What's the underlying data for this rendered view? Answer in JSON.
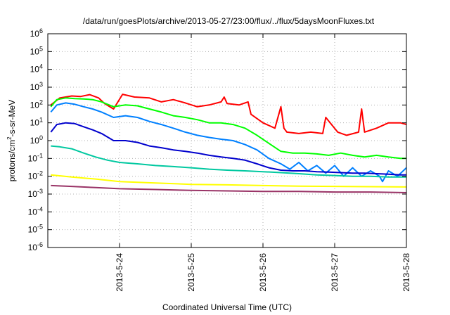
{
  "chart_data": {
    "type": "line",
    "title": "/data/run/goesPlots/archive/2013-05-27/23:00/flux/../flux/5daysMoonFluxes.txt",
    "xlabel": "Coordinated Universal Time (UTC)",
    "ylabel": {
      "prefix": "protons/cm",
      "sup": "2",
      "suffix": "-s-sr-MeV"
    },
    "y_scale": "log",
    "ylim": [
      1e-06,
      1000000.0
    ],
    "x_range": [
      "2013-05-23T00:00",
      "2013-05-28T00:00"
    ],
    "grid": true,
    "legend": "none",
    "x_ticks": [
      "2013-5-24",
      "2013-5-25",
      "2013-5-26",
      "2013-5-27",
      "2013-5-28"
    ],
    "y_ticks": [
      {
        "base": "10",
        "exp": "-6"
      },
      {
        "base": "10",
        "exp": "-5"
      },
      {
        "base": "10",
        "exp": "-4"
      },
      {
        "base": "10",
        "exp": "-3"
      },
      {
        "base": "10",
        "exp": "-2"
      },
      {
        "base": "10",
        "exp": "-1"
      },
      {
        "base": "10",
        "exp": "0"
      },
      {
        "base": "10",
        "exp": "1"
      },
      {
        "base": "10",
        "exp": "2"
      },
      {
        "base": "10",
        "exp": "3"
      },
      {
        "base": "10",
        "exp": "4"
      },
      {
        "base": "10",
        "exp": "5"
      },
      {
        "base": "10",
        "exp": "6"
      }
    ],
    "series": [
      {
        "color": "#ff0000",
        "x": [
          "2013-05-23T01:00",
          "2013-05-23T04:00",
          "2013-05-23T08:00",
          "2013-05-23T11:00",
          "2013-05-23T14:00",
          "2013-05-23T17:00",
          "2013-05-23T19:00",
          "2013-05-23T22:00",
          "2013-05-24T01:00",
          "2013-05-24T05:00",
          "2013-05-24T10:00",
          "2013-05-24T14:00",
          "2013-05-24T18:00",
          "2013-05-24T22:00",
          "2013-05-25T02:00",
          "2013-05-25T06:00",
          "2013-05-25T10:00",
          "2013-05-25T11:00",
          "2013-05-25T12:00",
          "2013-05-25T16:00",
          "2013-05-25T19:00",
          "2013-05-25T20:00",
          "2013-05-26T00:00",
          "2013-05-26T04:00",
          "2013-05-26T06:00",
          "2013-05-26T07:00",
          "2013-05-26T08:00",
          "2013-05-26T12:00",
          "2013-05-26T16:00",
          "2013-05-26T20:00",
          "2013-05-26T21:00",
          "2013-05-27T01:00",
          "2013-05-27T04:00",
          "2013-05-27T08:00",
          "2013-05-27T09:00",
          "2013-05-27T10:00",
          "2013-05-27T14:00",
          "2013-05-27T18:00",
          "2013-05-27T22:00",
          "2013-05-28T00:00"
        ],
        "y": [
          100,
          250,
          320,
          300,
          380,
          250,
          120,
          60,
          400,
          280,
          250,
          150,
          200,
          130,
          80,
          100,
          150,
          280,
          120,
          100,
          150,
          30,
          10,
          5,
          80,
          5,
          3,
          2.5,
          3,
          2.5,
          20,
          3,
          2,
          3,
          60,
          3,
          5,
          10,
          10,
          8
        ]
      },
      {
        "color": "#00ff00",
        "x": [
          "2013-05-23T01:00",
          "2013-05-23T03:00",
          "2013-05-23T06:00",
          "2013-05-23T09:00",
          "2013-05-23T12:00",
          "2013-05-23T15:00",
          "2013-05-23T18:00",
          "2013-05-23T22:00",
          "2013-05-24T02:00",
          "2013-05-24T06:00",
          "2013-05-24T10:00",
          "2013-05-24T14:00",
          "2013-05-24T18:00",
          "2013-05-24T22:00",
          "2013-05-25T02:00",
          "2013-05-25T06:00",
          "2013-05-25T10:00",
          "2013-05-25T14:00",
          "2013-05-25T18:00",
          "2013-05-25T22:00",
          "2013-05-26T02:00",
          "2013-05-26T06:00",
          "2013-05-26T10:00",
          "2013-05-26T14:00",
          "2013-05-26T18:00",
          "2013-05-26T22:00",
          "2013-05-27T02:00",
          "2013-05-27T06:00",
          "2013-05-27T10:00",
          "2013-05-27T14:00",
          "2013-05-27T18:00",
          "2013-05-27T22:00",
          "2013-05-28T00:00"
        ],
        "y": [
          80,
          200,
          250,
          230,
          220,
          200,
          150,
          80,
          100,
          90,
          60,
          40,
          25,
          20,
          15,
          10,
          10,
          8,
          5,
          2,
          0.7,
          0.25,
          0.2,
          0.2,
          0.18,
          0.15,
          0.2,
          0.15,
          0.12,
          0.15,
          0.12,
          0.1,
          0.1
        ]
      },
      {
        "color": "#0080ff",
        "x": [
          "2013-05-23T01:00",
          "2013-05-23T03:00",
          "2013-05-23T06:00",
          "2013-05-23T09:00",
          "2013-05-23T12:00",
          "2013-05-23T15:00",
          "2013-05-23T18:00",
          "2013-05-23T22:00",
          "2013-05-24T02:00",
          "2013-05-24T06:00",
          "2013-05-24T10:00",
          "2013-05-24T14:00",
          "2013-05-24T18:00",
          "2013-05-24T22:00",
          "2013-05-25T02:00",
          "2013-05-25T06:00",
          "2013-05-25T10:00",
          "2013-05-25T14:00",
          "2013-05-25T18:00",
          "2013-05-25T22:00",
          "2013-05-26T02:00",
          "2013-05-26T06:00",
          "2013-05-26T09:00",
          "2013-05-26T12:00",
          "2013-05-26T15:00",
          "2013-05-26T18:00",
          "2013-05-26T21:00",
          "2013-05-27T00:00",
          "2013-05-27T03:00",
          "2013-05-27T06:00",
          "2013-05-27T09:00",
          "2013-05-27T12:00",
          "2013-05-27T15:00",
          "2013-05-27T16:00",
          "2013-05-27T18:00",
          "2013-05-27T21:00",
          "2013-05-28T00:00"
        ],
        "y": [
          40,
          100,
          130,
          110,
          80,
          60,
          40,
          20,
          25,
          20,
          12,
          8,
          5,
          3,
          2,
          1.5,
          1.2,
          1,
          0.6,
          0.3,
          0.1,
          0.05,
          0.025,
          0.06,
          0.02,
          0.04,
          0.015,
          0.04,
          0.01,
          0.03,
          0.01,
          0.02,
          0.01,
          0.005,
          0.02,
          0.01,
          0.03
        ]
      },
      {
        "color": "#0000cd",
        "x": [
          "2013-05-23T01:00",
          "2013-05-23T03:00",
          "2013-05-23T06:00",
          "2013-05-23T09:00",
          "2013-05-23T12:00",
          "2013-05-23T15:00",
          "2013-05-23T18:00",
          "2013-05-23T22:00",
          "2013-05-24T02:00",
          "2013-05-24T06:00",
          "2013-05-24T10:00",
          "2013-05-24T14:00",
          "2013-05-24T18:00",
          "2013-05-24T22:00",
          "2013-05-25T02:00",
          "2013-05-25T06:00",
          "2013-05-25T10:00",
          "2013-05-25T14:00",
          "2013-05-25T18:00",
          "2013-05-25T22:00",
          "2013-05-26T02:00",
          "2013-05-26T06:00",
          "2013-05-26T10:00",
          "2013-05-26T14:00",
          "2013-05-26T18:00",
          "2013-05-26T22:00",
          "2013-05-27T02:00",
          "2013-05-27T06:00",
          "2013-05-27T10:00",
          "2013-05-27T14:00",
          "2013-05-27T18:00",
          "2013-05-27T22:00",
          "2013-05-28T00:00"
        ],
        "y": [
          3,
          8,
          10,
          9,
          6,
          4,
          2.5,
          1,
          1,
          0.8,
          0.5,
          0.4,
          0.3,
          0.25,
          0.2,
          0.15,
          0.12,
          0.1,
          0.08,
          0.05,
          0.03,
          0.022,
          0.02,
          0.02,
          0.018,
          0.017,
          0.016,
          0.015,
          0.015,
          0.014,
          0.013,
          0.012,
          0.012
        ]
      },
      {
        "color": "#00c8a0",
        "x": [
          "2013-05-23T01:00",
          "2013-05-23T04:00",
          "2013-05-23T08:00",
          "2013-05-23T12:00",
          "2013-05-23T16:00",
          "2013-05-23T20:00",
          "2013-05-24T00:00",
          "2013-05-24T06:00",
          "2013-05-24T12:00",
          "2013-05-24T18:00",
          "2013-05-25T00:00",
          "2013-05-25T06:00",
          "2013-05-25T12:00",
          "2013-05-25T18:00",
          "2013-05-26T00:00",
          "2013-05-26T06:00",
          "2013-05-26T12:00",
          "2013-05-26T18:00",
          "2013-05-27T00:00",
          "2013-05-27T06:00",
          "2013-05-27T12:00",
          "2013-05-27T18:00",
          "2013-05-28T00:00"
        ],
        "y": [
          0.5,
          0.45,
          0.35,
          0.2,
          0.12,
          0.08,
          0.06,
          0.05,
          0.04,
          0.035,
          0.03,
          0.025,
          0.022,
          0.02,
          0.018,
          0.016,
          0.014,
          0.012,
          0.011,
          0.01,
          0.01,
          0.009,
          0.009
        ]
      },
      {
        "color": "#ffff00",
        "x": [
          "2013-05-23T01:00",
          "2013-05-23T08:00",
          "2013-05-23T16:00",
          "2013-05-24T00:00",
          "2013-05-24T12:00",
          "2013-05-25T00:00",
          "2013-05-25T12:00",
          "2013-05-26T00:00",
          "2013-05-26T12:00",
          "2013-05-27T00:00",
          "2013-05-27T12:00",
          "2013-05-28T00:00"
        ],
        "y": [
          0.012,
          0.009,
          0.007,
          0.005,
          0.0042,
          0.0035,
          0.0033,
          0.003,
          0.0028,
          0.0027,
          0.0026,
          0.0025
        ]
      },
      {
        "color": "#993366",
        "x": [
          "2013-05-23T01:00",
          "2013-05-23T08:00",
          "2013-05-23T16:00",
          "2013-05-24T00:00",
          "2013-05-24T12:00",
          "2013-05-25T00:00",
          "2013-05-25T12:00",
          "2013-05-26T00:00",
          "2013-05-26T12:00",
          "2013-05-27T00:00",
          "2013-05-27T12:00",
          "2013-05-28T00:00"
        ],
        "y": [
          0.003,
          0.0027,
          0.0023,
          0.002,
          0.0018,
          0.0016,
          0.0015,
          0.0014,
          0.0014,
          0.0013,
          0.0013,
          0.0012
        ]
      }
    ]
  }
}
